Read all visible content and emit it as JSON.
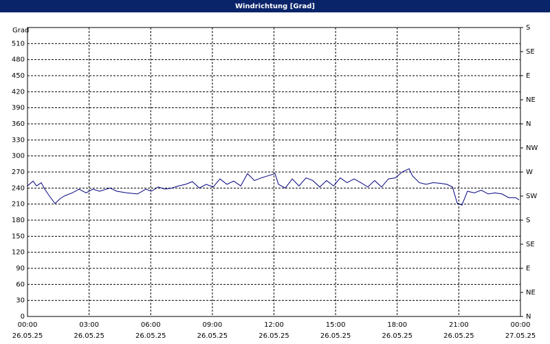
{
  "chart_data": {
    "type": "line",
    "title": "Windrichtung [Grad]",
    "y_label": "Grad",
    "x": [
      0,
      0.27,
      0.44,
      0.67,
      0.84,
      1.07,
      1.34,
      1.61,
      1.84,
      2.18,
      2.51,
      2.85,
      3.18,
      3.51,
      4.02,
      4.35,
      4.85,
      5.36,
      5.76,
      6.03,
      6.36,
      6.69,
      7.03,
      7.36,
      7.7,
      8.03,
      8.37,
      8.7,
      9.04,
      9.37,
      9.71,
      10.04,
      10.38,
      10.71,
      11.05,
      11.38,
      11.72,
      12.05,
      12.22,
      12.55,
      12.89,
      13.22,
      13.56,
      13.89,
      14.23,
      14.56,
      14.9,
      15.23,
      15.56,
      15.9,
      16.23,
      16.57,
      16.9,
      17.24,
      17.57,
      17.91,
      18.24,
      18.58,
      18.74,
      19.08,
      19.41,
      19.75,
      20.08,
      20.42,
      20.69,
      20.92,
      21.15,
      21.42,
      21.76,
      22.09,
      22.43,
      22.76,
      23.1,
      23.43,
      23.77,
      23.93
    ],
    "series": [
      {
        "name": "Windrichtung",
        "color": "#000080",
        "values": [
          244,
          253,
          244,
          250,
          238,
          225,
          211,
          221,
          226,
          231,
          238,
          231,
          238,
          234,
          240,
          234,
          231,
          229,
          238,
          234,
          242,
          238,
          240,
          244,
          247,
          252,
          240,
          247,
          242,
          257,
          247,
          253,
          244,
          267,
          254,
          259,
          263,
          267,
          247,
          240,
          257,
          244,
          259,
          254,
          242,
          254,
          244,
          259,
          250,
          257,
          250,
          242,
          254,
          242,
          257,
          259,
          270,
          276,
          263,
          250,
          247,
          250,
          249,
          247,
          242,
          212,
          208,
          234,
          231,
          236,
          229,
          231,
          229,
          222,
          222,
          218
        ]
      }
    ],
    "xlim": [
      0,
      24
    ],
    "xticks": [
      {
        "value": 0,
        "label": "00:00 26.05.25"
      },
      {
        "value": 3,
        "label": "03:00 26.05.25"
      },
      {
        "value": 6,
        "label": "06:00 26.05.25"
      },
      {
        "value": 9,
        "label": "09:00 26.05.25"
      },
      {
        "value": 12,
        "label": "12:00 26.05.25"
      },
      {
        "value": 15,
        "label": "15:00 26.05.25"
      },
      {
        "value": 18,
        "label": "18:00 26.05.25"
      },
      {
        "value": 21,
        "label": "21:00 26.05.25"
      },
      {
        "value": 24,
        "label": "00:00 27.05.25"
      }
    ],
    "ylim": [
      0,
      540
    ],
    "yticks": [
      0,
      30,
      60,
      90,
      120,
      150,
      180,
      210,
      240,
      270,
      300,
      330,
      360,
      390,
      420,
      450,
      480,
      510
    ],
    "y2lim": [
      0,
      540
    ],
    "y2ticks": [
      {
        "value": 0,
        "label": "N"
      },
      {
        "value": 45,
        "label": "NE"
      },
      {
        "value": 90,
        "label": "E"
      },
      {
        "value": 135,
        "label": "SE"
      },
      {
        "value": 180,
        "label": "S"
      },
      {
        "value": 225,
        "label": "SW"
      },
      {
        "value": 270,
        "label": "W"
      },
      {
        "value": 315,
        "label": "NW"
      },
      {
        "value": 360,
        "label": "N"
      },
      {
        "value": 405,
        "label": "NE"
      },
      {
        "value": 450,
        "label": "E"
      },
      {
        "value": 495,
        "label": "SE"
      },
      {
        "value": 540,
        "label": "S"
      }
    ],
    "grid": true
  }
}
